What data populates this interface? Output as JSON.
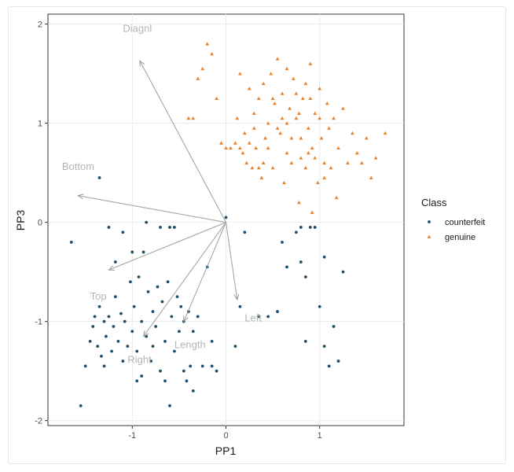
{
  "chart_data": {
    "type": "scatter",
    "xlabel": "PP1",
    "ylabel": "PP3",
    "xlim": [
      -1.9,
      1.9
    ],
    "ylim": [
      -2.05,
      2.1
    ],
    "x_ticks": [
      -1,
      0,
      1
    ],
    "x_tick_labels": [
      "-1",
      "0",
      "1"
    ],
    "y_ticks": [
      -2,
      -1,
      0,
      1,
      2
    ],
    "y_tick_labels": [
      "-2",
      "-1",
      "0",
      "1",
      "2"
    ],
    "grid": true,
    "legend": {
      "title": "Class",
      "placement": "right"
    },
    "series": [
      {
        "name": "counterfeit",
        "color": "#1f4e6b",
        "marker": "dot",
        "points": [
          [
            -1.55,
            -1.85
          ],
          [
            -1.5,
            -1.45
          ],
          [
            -1.45,
            -1.2
          ],
          [
            -1.42,
            -1.05
          ],
          [
            -1.4,
            -0.95
          ],
          [
            -1.37,
            -1.25
          ],
          [
            -1.35,
            -0.85
          ],
          [
            -1.33,
            -1.35
          ],
          [
            -1.3,
            -1.0
          ],
          [
            -1.28,
            -1.15
          ],
          [
            -1.25,
            -0.95
          ],
          [
            -1.22,
            -1.3
          ],
          [
            -1.2,
            -1.05
          ],
          [
            -1.18,
            -0.75
          ],
          [
            -1.15,
            -1.2
          ],
          [
            -1.12,
            -0.92
          ],
          [
            -1.1,
            -1.4
          ],
          [
            -1.08,
            -1.0
          ],
          [
            -1.05,
            -1.25
          ],
          [
            -1.02,
            -0.6
          ],
          [
            -1.0,
            -1.1
          ],
          [
            -0.98,
            -0.85
          ],
          [
            -0.95,
            -1.3
          ],
          [
            -0.93,
            -0.55
          ],
          [
            -0.9,
            -1.0
          ],
          [
            -0.88,
            -0.3
          ],
          [
            -0.85,
            -1.15
          ],
          [
            -0.83,
            -0.7
          ],
          [
            -0.8,
            -1.4
          ],
          [
            -0.78,
            -0.9
          ],
          [
            -0.75,
            -1.05
          ],
          [
            -0.73,
            -0.65
          ],
          [
            -0.7,
            -1.5
          ],
          [
            -0.68,
            -0.8
          ],
          [
            -0.65,
            -1.2
          ],
          [
            -0.62,
            -0.6
          ],
          [
            -0.6,
            -1.85
          ],
          [
            -0.58,
            -0.95
          ],
          [
            -0.55,
            -1.3
          ],
          [
            -0.52,
            -0.75
          ],
          [
            -0.5,
            -1.1
          ],
          [
            -0.48,
            -0.85
          ],
          [
            -0.45,
            -1.5
          ],
          [
            -0.42,
            -1.6
          ],
          [
            -0.4,
            -0.9
          ],
          [
            -0.38,
            -1.45
          ],
          [
            -0.35,
            -1.1
          ],
          [
            -0.25,
            -1.45
          ],
          [
            -0.15,
            -1.45
          ],
          [
            -0.1,
            -1.5
          ],
          [
            -1.65,
            -0.2
          ],
          [
            -1.35,
            0.45
          ],
          [
            -1.1,
            -0.1
          ],
          [
            -1.0,
            -0.3
          ],
          [
            -0.85,
            0.0
          ],
          [
            -0.7,
            -0.05
          ],
          [
            -0.6,
            -0.05
          ],
          [
            -0.55,
            -0.05
          ],
          [
            -0.45,
            -1.0
          ],
          [
            -0.3,
            -0.95
          ],
          [
            -0.2,
            -0.45
          ],
          [
            -0.15,
            -1.2
          ],
          [
            -1.25,
            -0.05
          ],
          [
            -0.95,
            -1.6
          ],
          [
            -0.9,
            -1.55
          ],
          [
            -0.65,
            -1.6
          ],
          [
            -0.35,
            -1.7
          ],
          [
            -1.3,
            -1.45
          ],
          [
            -1.18,
            -0.4
          ],
          [
            -0.78,
            -1.25
          ],
          [
            0.1,
            -1.25
          ],
          [
            0.2,
            -0.1
          ],
          [
            0.35,
            -0.95
          ],
          [
            0.45,
            -0.95
          ],
          [
            0.55,
            -0.9
          ],
          [
            0.6,
            -0.2
          ],
          [
            0.65,
            -0.45
          ],
          [
            0.75,
            -0.1
          ],
          [
            0.8,
            -0.4
          ],
          [
            0.85,
            -0.55
          ],
          [
            0.9,
            -0.05
          ],
          [
            0.95,
            -0.05
          ],
          [
            1.0,
            -0.85
          ],
          [
            1.05,
            -0.35
          ],
          [
            1.1,
            -1.45
          ],
          [
            1.15,
            -1.05
          ],
          [
            1.2,
            -1.4
          ],
          [
            1.25,
            -0.5
          ],
          [
            0.85,
            -1.2
          ],
          [
            1.05,
            -1.25
          ],
          [
            0.8,
            -0.05
          ],
          [
            0.15,
            -0.85
          ],
          [
            0.0,
            0.05
          ]
        ]
      },
      {
        "name": "genuine",
        "color": "#e8822a",
        "marker": "triangle",
        "points": [
          [
            -0.4,
            1.05
          ],
          [
            -0.35,
            1.05
          ],
          [
            -0.3,
            1.45
          ],
          [
            -0.25,
            1.55
          ],
          [
            -0.2,
            1.8
          ],
          [
            -0.15,
            1.7
          ],
          [
            -0.1,
            1.25
          ],
          [
            -0.05,
            0.8
          ],
          [
            0.0,
            0.75
          ],
          [
            0.05,
            0.75
          ],
          [
            0.1,
            0.8
          ],
          [
            0.12,
            1.05
          ],
          [
            0.15,
            1.5
          ],
          [
            0.18,
            0.7
          ],
          [
            0.2,
            0.9
          ],
          [
            0.22,
            0.6
          ],
          [
            0.25,
            1.35
          ],
          [
            0.28,
            0.55
          ],
          [
            0.3,
            1.1
          ],
          [
            0.32,
            0.75
          ],
          [
            0.35,
            1.25
          ],
          [
            0.38,
            0.45
          ],
          [
            0.4,
            1.4
          ],
          [
            0.42,
            0.85
          ],
          [
            0.45,
            1.0
          ],
          [
            0.48,
            1.5
          ],
          [
            0.5,
            0.55
          ],
          [
            0.52,
            1.2
          ],
          [
            0.55,
            1.65
          ],
          [
            0.58,
            0.9
          ],
          [
            0.6,
            1.3
          ],
          [
            0.62,
            0.4
          ],
          [
            0.65,
            1.0
          ],
          [
            0.68,
            1.15
          ],
          [
            0.7,
            0.6
          ],
          [
            0.72,
            1.45
          ],
          [
            0.75,
            1.05
          ],
          [
            0.78,
            0.2
          ],
          [
            0.8,
            0.85
          ],
          [
            0.82,
            1.25
          ],
          [
            0.85,
            0.55
          ],
          [
            0.88,
            0.95
          ],
          [
            0.9,
            1.6
          ],
          [
            0.92,
            0.75
          ],
          [
            0.95,
            1.1
          ],
          [
            0.98,
            0.4
          ],
          [
            1.0,
            1.35
          ],
          [
            1.02,
            0.85
          ],
          [
            1.05,
            0.6
          ],
          [
            1.08,
            1.2
          ],
          [
            1.1,
            0.95
          ],
          [
            1.12,
            0.55
          ],
          [
            1.15,
            1.05
          ],
          [
            1.18,
            0.25
          ],
          [
            1.2,
            0.75
          ],
          [
            1.25,
            1.15
          ],
          [
            1.3,
            0.6
          ],
          [
            1.35,
            0.9
          ],
          [
            1.4,
            0.7
          ],
          [
            1.45,
            0.6
          ],
          [
            1.5,
            0.85
          ],
          [
            1.55,
            0.45
          ],
          [
            1.6,
            0.65
          ],
          [
            1.7,
            0.9
          ],
          [
            0.55,
            0.95
          ],
          [
            0.65,
            0.7
          ],
          [
            0.75,
            1.3
          ],
          [
            0.85,
            1.4
          ],
          [
            0.95,
            0.65
          ],
          [
            0.4,
            0.6
          ],
          [
            0.3,
            0.95
          ],
          [
            0.6,
            1.05
          ],
          [
            0.7,
            0.85
          ],
          [
            0.8,
            0.65
          ],
          [
            1.0,
            1.05
          ],
          [
            0.5,
            1.25
          ],
          [
            0.45,
            0.75
          ],
          [
            0.35,
            0.55
          ],
          [
            0.9,
            1.25
          ],
          [
            1.05,
            0.45
          ],
          [
            0.25,
            0.8
          ],
          [
            0.15,
            0.75
          ],
          [
            0.65,
            1.55
          ],
          [
            0.78,
            1.1
          ],
          [
            0.88,
            0.7
          ],
          [
            0.92,
            0.1
          ]
        ]
      }
    ],
    "loadings": [
      {
        "label": "Diagnl",
        "x": -0.92,
        "y": 1.63,
        "label_x": -1.1,
        "label_y": 1.92
      },
      {
        "label": "Bottom",
        "x": -1.58,
        "y": 0.27,
        "label_x": -1.75,
        "label_y": 0.53
      },
      {
        "label": "Top",
        "x": -1.25,
        "y": -0.48,
        "label_x": -1.45,
        "label_y": -0.78
      },
      {
        "label": "Right",
        "x": -0.88,
        "y": -1.15,
        "label_x": -1.05,
        "label_y": -1.42
      },
      {
        "label": "Length",
        "x": -0.45,
        "y": -1.0,
        "label_x": -0.55,
        "label_y": -1.27
      },
      {
        "label": "Left",
        "x": 0.12,
        "y": -0.78,
        "label_x": 0.2,
        "label_y": -1.0
      }
    ]
  }
}
